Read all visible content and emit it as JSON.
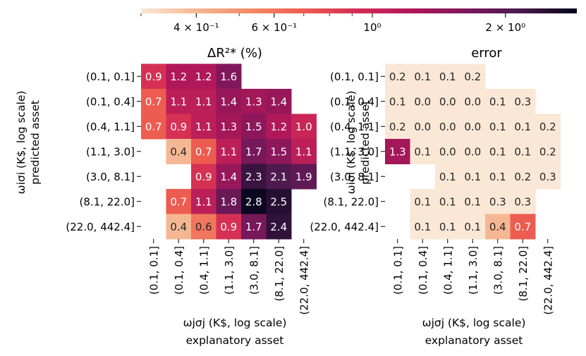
{
  "colorbar": {
    "scale": "log",
    "tick_labels": [
      "4 × 10⁻¹",
      "6 × 10⁻¹",
      "10⁰",
      "2 × 10⁰"
    ],
    "tick_values": [
      0.4,
      0.6,
      1.0,
      2.0
    ],
    "range": [
      0.3,
      2.9
    ],
    "colormap": "rocket_r"
  },
  "chart_data": [
    {
      "type": "heatmap",
      "title": "ΔR²* (%)",
      "xlabel_line1": "ωjσj (K$, log scale)",
      "xlabel_line2": "explanatory asset",
      "ylabel_line1": "ωiσi (K$, log scale)",
      "ylabel_line2": "predicted asset",
      "row_labels": [
        "(0.1, 0.1]",
        "(0.1, 0.4]",
        "(0.4, 1.1]",
        "(1.1, 3.0]",
        "(3.0, 8.1]",
        "(8.1, 22.0]",
        "(22.0, 442.4]"
      ],
      "col_labels": [
        "(0.1, 0.1]",
        "(0.1, 0.4]",
        "(0.4, 1.1]",
        "(1.1, 3.0]",
        "(3.0, 8.1]",
        "(8.1, 22.0]",
        "(22.0, 442.4]"
      ],
      "values": [
        [
          0.9,
          1.2,
          1.2,
          1.6,
          null,
          null,
          null
        ],
        [
          0.7,
          1.1,
          1.1,
          1.4,
          1.3,
          1.4,
          null
        ],
        [
          0.7,
          0.9,
          1.1,
          1.3,
          1.5,
          1.2,
          1.0
        ],
        [
          null,
          0.4,
          0.7,
          1.1,
          1.7,
          1.5,
          1.1
        ],
        [
          null,
          null,
          0.9,
          1.4,
          2.3,
          2.1,
          1.9
        ],
        [
          null,
          0.7,
          1.1,
          1.8,
          2.8,
          2.5,
          null
        ],
        [
          null,
          0.4,
          0.6,
          0.9,
          1.7,
          2.4,
          null
        ]
      ]
    },
    {
      "type": "heatmap",
      "title": "error",
      "xlabel_line1": "ωjσj (K$, log scale)",
      "xlabel_line2": "explanatory asset",
      "ylabel_line1": "ωiσi (K$, log scale)",
      "ylabel_line2": "predicted asset",
      "row_labels": [
        "(0.1, 0.1]",
        "(0.1, 0.4]",
        "(0.4, 1.1]",
        "(1.1, 3.0]",
        "(3.0, 8.1]",
        "(8.1, 22.0]",
        "(22.0, 442.4]"
      ],
      "col_labels": [
        "(0.1, 0.1]",
        "(0.1, 0.4]",
        "(0.4, 1.1]",
        "(1.1, 3.0]",
        "(3.0, 8.1]",
        "(8.1, 22.0]",
        "(22.0, 442.4]"
      ],
      "values": [
        [
          0.2,
          0.1,
          0.1,
          0.2,
          null,
          null,
          null
        ],
        [
          0.1,
          0.0,
          0.0,
          0.0,
          0.1,
          0.3,
          null
        ],
        [
          0.2,
          0.0,
          0.0,
          0.0,
          0.1,
          0.1,
          0.2
        ],
        [
          1.3,
          0.1,
          0.0,
          0.0,
          0.1,
          0.1,
          0.2
        ],
        [
          null,
          null,
          0.1,
          0.1,
          0.1,
          0.2,
          0.3
        ],
        [
          null,
          0.1,
          0.1,
          0.1,
          0.3,
          0.3,
          null
        ],
        [
          null,
          0.1,
          0.1,
          0.1,
          0.4,
          0.7,
          null
        ]
      ]
    }
  ]
}
